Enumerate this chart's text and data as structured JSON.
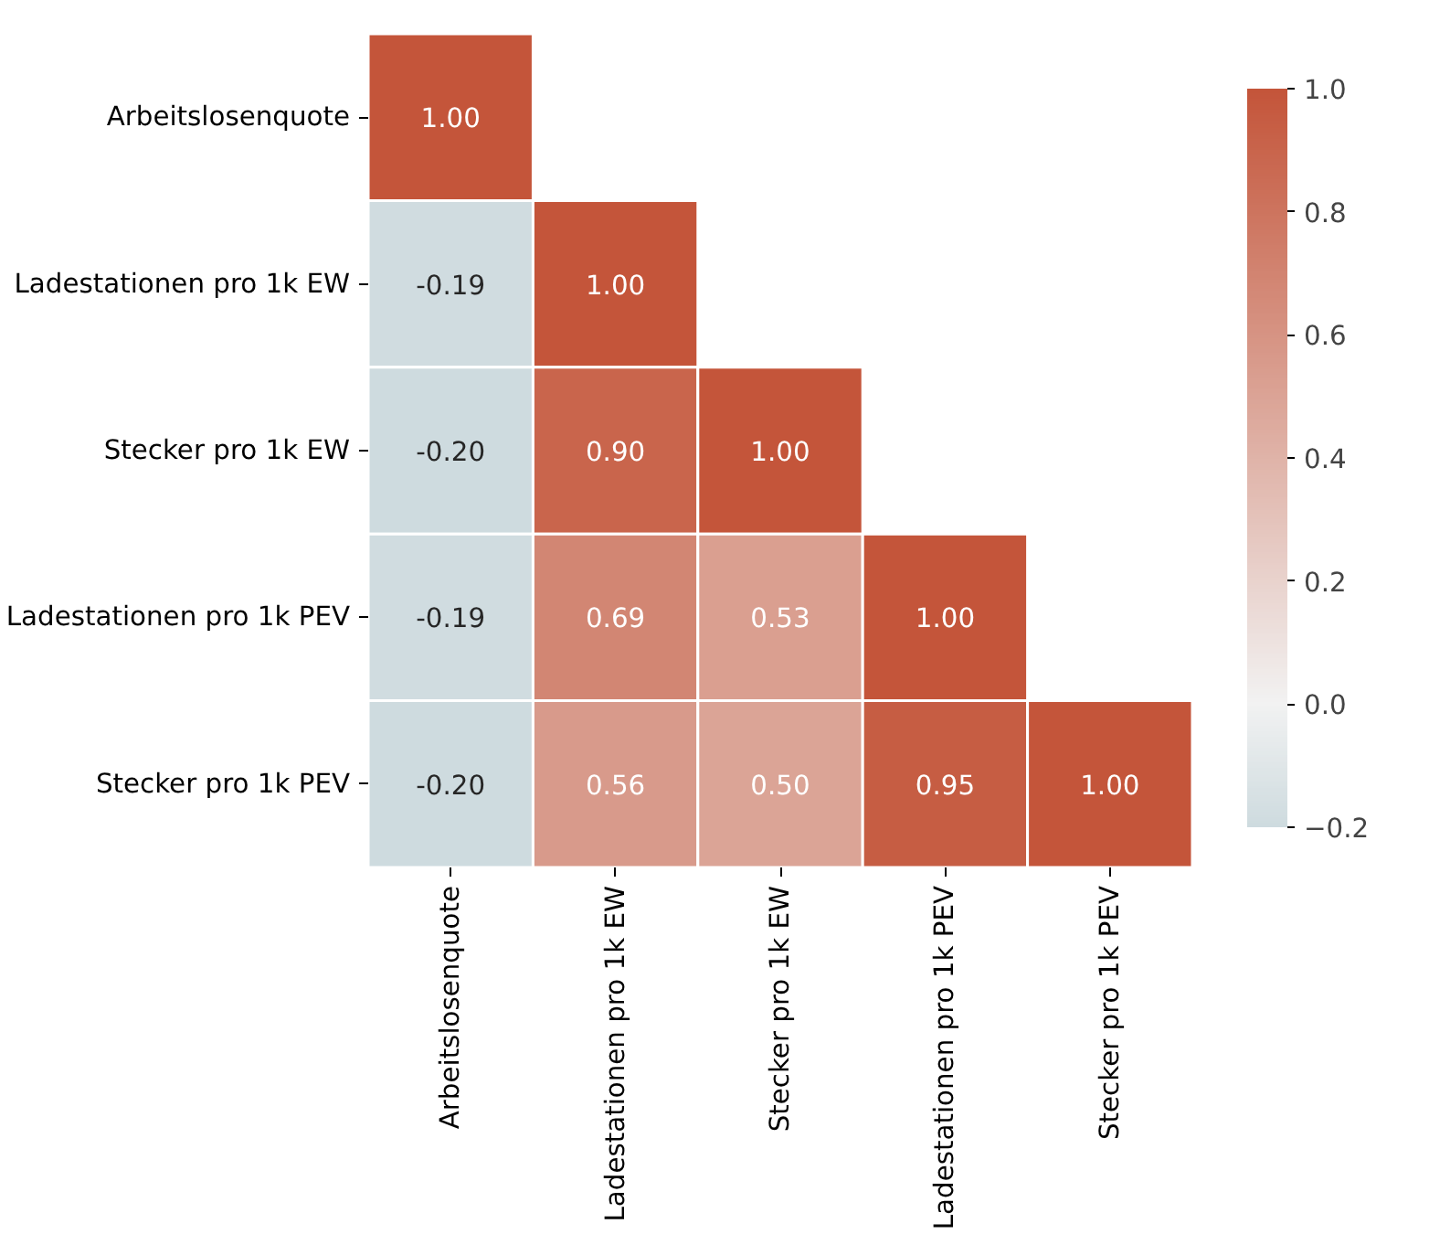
{
  "chart_data": {
    "type": "heatmap",
    "categories": [
      "Arbeitslosenquote",
      "Ladestationen pro 1k EW",
      "Stecker pro 1k EW",
      "Ladestationen pro 1k PEV",
      "Stecker pro 1k PEV"
    ],
    "y_categories": [
      "Arbeitslosenquote",
      "Ladestationen pro 1k EW",
      "Stecker pro 1k EW",
      "Ladestationen pro 1k PEV",
      "Stecker pro 1k PEV"
    ],
    "cells": [
      [
        1.0,
        null,
        null,
        null,
        null
      ],
      [
        -0.19,
        1.0,
        null,
        null,
        null
      ],
      [
        -0.2,
        0.9,
        1.0,
        null,
        null
      ],
      [
        -0.19,
        0.69,
        0.53,
        1.0,
        null
      ],
      [
        -0.2,
        0.56,
        0.5,
        0.95,
        1.0
      ]
    ],
    "cell_labels": [
      [
        "1.00",
        null,
        null,
        null,
        null
      ],
      [
        "-0.19",
        "1.00",
        null,
        null,
        null
      ],
      [
        "-0.20",
        "0.90",
        "1.00",
        null,
        null
      ],
      [
        "-0.19",
        "0.69",
        "0.53",
        "1.00",
        null
      ],
      [
        "-0.20",
        "0.56",
        "0.50",
        "0.95",
        "1.00"
      ]
    ],
    "clim": [
      -0.2,
      1.0
    ],
    "cticks": [
      {
        "value": -0.2,
        "label": "−0.2"
      },
      {
        "value": 0,
        "label": "0.0"
      },
      0.2,
      0.4,
      0.6,
      0.8,
      {
        "value": 1.0,
        "label": "1.0"
      }
    ]
  }
}
